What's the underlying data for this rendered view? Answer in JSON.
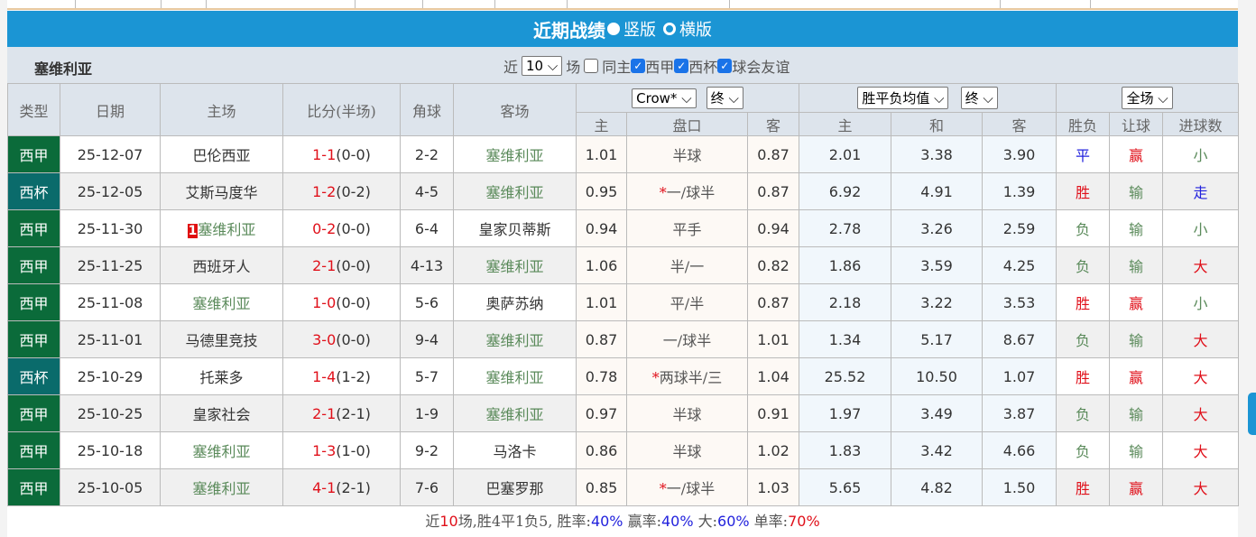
{
  "title": "近期战绩",
  "layout_options": [
    {
      "label": "竖版",
      "selected": true
    },
    {
      "label": "横版",
      "selected": false
    }
  ],
  "team": "塞维利亚",
  "filter": {
    "prefix": "近",
    "count": "10",
    "suffix": "场",
    "options": [
      {
        "label": "同主",
        "checked": false
      },
      {
        "label": "西甲",
        "checked": true
      },
      {
        "label": "西杯",
        "checked": true
      },
      {
        "label": "球会友谊",
        "checked": true
      }
    ]
  },
  "headers": {
    "type": "类型",
    "date": "日期",
    "home": "主场",
    "score": "比分(半场)",
    "corner": "角球",
    "away": "客场",
    "company": "Crow*",
    "company_phase": "终",
    "avg": "胜平负均值",
    "avg_phase": "终",
    "period": "全场",
    "ah_home": "主",
    "ah_line": "盘口",
    "ah_away": "客",
    "eu_home": "主",
    "eu_draw": "和",
    "eu_away": "客",
    "result": "胜负",
    "handicap": "让球",
    "goals": "进球数"
  },
  "colors": {
    "league": "#0b6b3a",
    "cup": "#0a6b6b",
    "accent": "#1b95d4",
    "team_highlight": "#5a8a5a",
    "red": "#e0101a",
    "blue": "#2222dd"
  },
  "rows": [
    {
      "type": "西甲",
      "date": "25-12-07",
      "home": "巴伦西亚",
      "ft": "1-1",
      "ht": "(0-0)",
      "corner": "2-2",
      "away": "塞维利亚",
      "ah_h": "1.01",
      "ah_star": "",
      "ah_line": "半球",
      "ah_a": "0.87",
      "eh": "2.01",
      "ed": "3.38",
      "ea": "3.90",
      "res": "平",
      "hc": "赢",
      "gl": "小"
    },
    {
      "type": "西杯",
      "date": "25-12-05",
      "home": "艾斯马度华",
      "ft": "1-2",
      "ht": "(0-2)",
      "corner": "4-5",
      "away": "塞维利亚",
      "ah_h": "0.95",
      "ah_star": "*",
      "ah_line": "一/球半",
      "ah_a": "0.87",
      "eh": "6.92",
      "ed": "4.91",
      "ea": "1.39",
      "res": "胜",
      "hc": "输",
      "gl": "走"
    },
    {
      "type": "西甲",
      "date": "25-11-30",
      "home_rank": "1",
      "home": "塞维利亚",
      "ft": "0-2",
      "ht": "(0-0)",
      "corner": "6-4",
      "away": "皇家贝蒂斯",
      "ah_h": "0.94",
      "ah_star": "",
      "ah_line": "平手",
      "ah_a": "0.94",
      "eh": "2.78",
      "ed": "3.26",
      "ea": "2.59",
      "res": "负",
      "hc": "输",
      "gl": "小"
    },
    {
      "type": "西甲",
      "date": "25-11-25",
      "home": "西班牙人",
      "ft": "2-1",
      "ht": "(0-0)",
      "corner": "4-13",
      "away": "塞维利亚",
      "ah_h": "1.06",
      "ah_star": "",
      "ah_line": "半/一",
      "ah_a": "0.82",
      "eh": "1.86",
      "ed": "3.59",
      "ea": "4.25",
      "res": "负",
      "hc": "输",
      "gl": "大"
    },
    {
      "type": "西甲",
      "date": "25-11-08",
      "home": "塞维利亚",
      "ft": "1-0",
      "ht": "(0-0)",
      "corner": "5-6",
      "away": "奥萨苏纳",
      "ah_h": "1.01",
      "ah_star": "",
      "ah_line": "平/半",
      "ah_a": "0.87",
      "eh": "2.18",
      "ed": "3.22",
      "ea": "3.53",
      "res": "胜",
      "hc": "赢",
      "gl": "小"
    },
    {
      "type": "西甲",
      "date": "25-11-01",
      "home": "马德里竞技",
      "ft": "3-0",
      "ht": "(0-0)",
      "corner": "9-4",
      "away": "塞维利亚",
      "ah_h": "0.87",
      "ah_star": "",
      "ah_line": "一/球半",
      "ah_a": "1.01",
      "eh": "1.34",
      "ed": "5.17",
      "ea": "8.67",
      "res": "负",
      "hc": "输",
      "gl": "大"
    },
    {
      "type": "西杯",
      "date": "25-10-29",
      "home": "托莱多",
      "ft": "1-4",
      "ht": "(1-2)",
      "corner": "5-7",
      "away": "塞维利亚",
      "ah_h": "0.78",
      "ah_star": "*",
      "ah_line": "两球半/三",
      "ah_a": "1.04",
      "eh": "25.52",
      "ed": "10.50",
      "ea": "1.07",
      "res": "胜",
      "hc": "赢",
      "gl": "大"
    },
    {
      "type": "西甲",
      "date": "25-10-25",
      "home": "皇家社会",
      "ft": "2-1",
      "ht": "(2-1)",
      "corner": "1-9",
      "away": "塞维利亚",
      "ah_h": "0.97",
      "ah_star": "",
      "ah_line": "半球",
      "ah_a": "0.91",
      "eh": "1.97",
      "ed": "3.49",
      "ea": "3.87",
      "res": "负",
      "hc": "输",
      "gl": "大"
    },
    {
      "type": "西甲",
      "date": "25-10-18",
      "home": "塞维利亚",
      "ft": "1-3",
      "ht": "(1-0)",
      "corner": "9-2",
      "away": "马洛卡",
      "ah_h": "0.86",
      "ah_star": "",
      "ah_line": "半球",
      "ah_a": "1.02",
      "eh": "1.83",
      "ed": "3.42",
      "ea": "4.66",
      "res": "负",
      "hc": "输",
      "gl": "大"
    },
    {
      "type": "西甲",
      "date": "25-10-05",
      "home": "塞维利亚",
      "ft": "4-1",
      "ht": "(2-1)",
      "corner": "7-6",
      "away": "巴塞罗那",
      "ah_h": "0.85",
      "ah_star": "*",
      "ah_line": "一/球半",
      "ah_a": "1.03",
      "eh": "5.65",
      "ed": "4.82",
      "ea": "1.50",
      "res": "胜",
      "hc": "赢",
      "gl": "大"
    }
  ],
  "summary": {
    "p1": "近",
    "games": "10",
    "p2": "场,胜4平1负5, 胜率:",
    "win_rate": "40%",
    "p3": " 赢率:",
    "cover_rate": "40%",
    "p4": " 大:",
    "over_rate": "60%",
    "p5": " 单率:",
    "odd_rate": "70%"
  }
}
